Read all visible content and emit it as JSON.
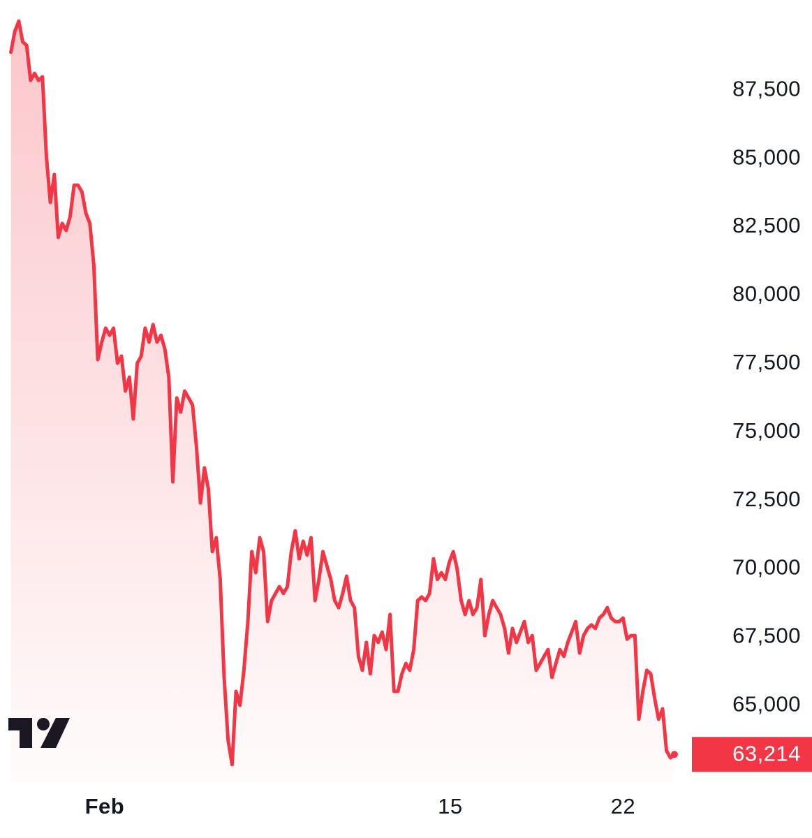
{
  "chart_data": {
    "type": "line",
    "color": "#f23645",
    "x": [
      -2.8,
      -2.64,
      -2.48,
      -2.32,
      -2.16,
      -2,
      -1.84,
      -1.68,
      -1.52,
      -1.36,
      -1.2,
      -1.04,
      -0.88,
      -0.72,
      -0.56,
      -0.4,
      -0.24,
      -0.08,
      0.08,
      0.24,
      0.4,
      0.56,
      0.72,
      0.88,
      1.04,
      1.2,
      1.36,
      1.52,
      1.68,
      1.84,
      2,
      2.16,
      2.32,
      2.48,
      2.64,
      2.8,
      2.96,
      3.12,
      3.28,
      3.44,
      3.6,
      3.76,
      3.92,
      4.08,
      4.24,
      4.4,
      4.56,
      4.72,
      4.88,
      5.04,
      5.2,
      5.36,
      5.52,
      5.68,
      5.84,
      6,
      6.16,
      6.32,
      6.48,
      6.64,
      6.8,
      6.96,
      7.12,
      7.28,
      7.44,
      7.6,
      7.76,
      7.92,
      8.08,
      8.24,
      8.4,
      8.56,
      8.72,
      8.88,
      9.04,
      9.2,
      9.36,
      9.52,
      9.68,
      9.84,
      10,
      10.16,
      10.32,
      10.48,
      10.64,
      10.8,
      10.96,
      11.12,
      11.28,
      11.44,
      11.6,
      11.76,
      11.92,
      12.08,
      12.24,
      12.4,
      12.56,
      12.72,
      12.88,
      13.04,
      13.2,
      13.36,
      13.52,
      13.68,
      13.84,
      14,
      14.16,
      14.32,
      14.48,
      14.64,
      14.8,
      14.96,
      15.12,
      15.28,
      15.44,
      15.6,
      15.76,
      15.92,
      16.08,
      16.24,
      16.4,
      16.56,
      16.72,
      16.88,
      17.04,
      17.2,
      17.36,
      17.52,
      17.68,
      17.84,
      18,
      18.16,
      18.32,
      18.48,
      18.64,
      18.8,
      18.96,
      19.12,
      19.28,
      19.44,
      19.6,
      19.76,
      19.92,
      20.08,
      20.24,
      20.4,
      20.56,
      20.72,
      20.88,
      21.04,
      21.2,
      21.36,
      21.52,
      21.68,
      21.84,
      22,
      22.16,
      22.32,
      22.48,
      22.64,
      22.8,
      22.96,
      23.12,
      23.28,
      23.44,
      23.6,
      23.76,
      23.92,
      24.08
    ],
    "values": [
      88890,
      89650,
      90030,
      89270,
      89140,
      87860,
      88120,
      87860,
      87990,
      85060,
      83400,
      84420,
      82120,
      82630,
      82370,
      82880,
      84030,
      84030,
      83780,
      83010,
      82630,
      81100,
      77650,
      78290,
      78800,
      78540,
      78800,
      77520,
      77780,
      76500,
      77010,
      75480,
      77520,
      77780,
      78800,
      78290,
      78930,
      78290,
      78540,
      78030,
      77010,
      73180,
      76250,
      75730,
      76500,
      76250,
      75990,
      74460,
      72410,
      73690,
      72930,
      70630,
      71140,
      69610,
      66030,
      63730,
      62840,
      65520,
      65010,
      66290,
      68070,
      70630,
      69860,
      71140,
      70630,
      68070,
      68840,
      69100,
      69350,
      69100,
      69350,
      70630,
      71390,
      70370,
      71010,
      70500,
      71140,
      68840,
      69610,
      70630,
      70120,
      69610,
      68840,
      68580,
      69100,
      69730,
      68840,
      68580,
      66800,
      66290,
      67310,
      66160,
      67560,
      67310,
      67690,
      67050,
      68330,
      65520,
      65520,
      66160,
      66540,
      66290,
      67050,
      68840,
      68970,
      68840,
      69100,
      70370,
      69610,
      69860,
      69610,
      70240,
      70630,
      69990,
      68840,
      68330,
      68840,
      68330,
      68580,
      69610,
      67560,
      68330,
      68840,
      68580,
      68330,
      67820,
      66920,
      67820,
      67310,
      67690,
      68070,
      67310,
      67560,
      66290,
      66540,
      66800,
      67050,
      66030,
      66540,
      67050,
      66800,
      67310,
      67690,
      68070,
      66920,
      67560,
      67820,
      67950,
      67820,
      68200,
      68330,
      68580,
      68200,
      68070,
      68070,
      68200,
      67430,
      67560,
      67560,
      64500,
      65520,
      66290,
      66160,
      65260,
      64500,
      64880,
      63350,
      63090,
      63214
    ],
    "last_value_label": "63,214",
    "xlim": [
      -3.24,
      24.76
    ],
    "xticks": [
      {
        "value": 1,
        "label": "Feb"
      },
      15,
      22
    ],
    "ylim": [
      62200,
      90800
    ],
    "yticks": [
      {
        "value": 65000,
        "label": "65,000"
      },
      {
        "value": 67500,
        "label": "67,500"
      },
      {
        "value": 70000,
        "label": "70,000"
      },
      {
        "value": 72500,
        "label": "72,500"
      },
      {
        "value": 75000,
        "label": "75,000"
      },
      {
        "value": 77500,
        "label": "77,500"
      },
      {
        "value": 80000,
        "label": "80,000"
      },
      {
        "value": 82500,
        "label": "82,500"
      },
      {
        "value": 85000,
        "label": "85,000"
      },
      {
        "value": 87500,
        "label": "87,500"
      }
    ]
  }
}
